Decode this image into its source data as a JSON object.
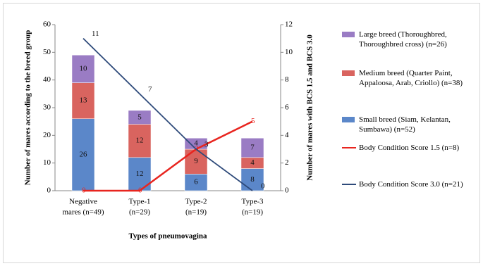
{
  "chart_data": {
    "type": "bar-line",
    "categories": [
      [
        "Negative",
        "mares (n=49)"
      ],
      [
        "Type-1",
        "(n=29)"
      ],
      [
        "Type-2",
        "(n=19)"
      ],
      [
        "Type-3",
        "(n=19)"
      ]
    ],
    "series": [
      {
        "name": "Small breed (Siam, Kelantan, Sumbawa) (n=52)",
        "color": "#5b87c9",
        "values": [
          26,
          12,
          6,
          8
        ]
      },
      {
        "name": "Medium breed (Quarter Paint, Appaloosa, Arab, Criollo) (n=38)",
        "color": "#d9645f",
        "values": [
          13,
          12,
          9,
          4
        ]
      },
      {
        "name": "Large breed (Thoroughbred, Thoroughbred cross) (n=26)",
        "color": "#9a7cc4",
        "values": [
          10,
          5,
          4,
          7
        ]
      }
    ],
    "lines": [
      {
        "name": "Body Condition Score 1.5 (n=8)",
        "color": "#e8251f",
        "values": [
          0,
          0,
          3,
          5
        ],
        "axis": "y2"
      },
      {
        "name": "Body Condition Score 3.0 (n=21)",
        "color": "#2e4a7a",
        "values": [
          11,
          7,
          3,
          0
        ],
        "axis": "y2"
      }
    ],
    "ylim": [
      0,
      60
    ],
    "yticks": [
      0,
      10,
      20,
      30,
      40,
      50,
      60
    ],
    "y2lim": [
      0,
      12
    ],
    "y2ticks": [
      0,
      2,
      4,
      6,
      8,
      10,
      12
    ],
    "ylabel": "Number of mares according to the breed group",
    "y2label": "Number of mares with BCS 1.5 and BCS 3.0",
    "xlabel": "Types of pneumovagina"
  }
}
